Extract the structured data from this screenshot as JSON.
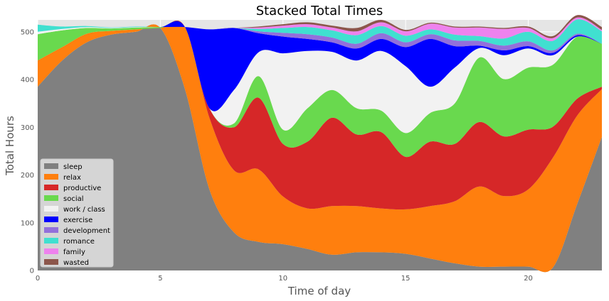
{
  "chart_data": {
    "type": "area",
    "stacked": true,
    "title": "Stacked Total Times",
    "xlabel": "Time of day",
    "ylabel": "Total Hours",
    "xlim": [
      0,
      23
    ],
    "ylim": [
      0,
      525
    ],
    "xticks": [
      0,
      5,
      10,
      15,
      20
    ],
    "yticks": [
      0,
      100,
      200,
      300,
      400,
      500
    ],
    "grid": true,
    "legend_position": "lower-left",
    "x": [
      0,
      1,
      2,
      3,
      4,
      5,
      6,
      7,
      8,
      9,
      10,
      11,
      12,
      13,
      14,
      15,
      16,
      17,
      18,
      19,
      20,
      21,
      22,
      23
    ],
    "series": [
      {
        "name": "sleep",
        "color": "#808080",
        "values": [
          385,
          440,
          478,
          494,
          500,
          508,
          380,
          170,
          80,
          60,
          55,
          45,
          33,
          38,
          38,
          35,
          25,
          15,
          8,
          8,
          8,
          6,
          140,
          280
        ]
      },
      {
        "name": "relax",
        "color": "#ff7f0e",
        "values": [
          55,
          28,
          18,
          8,
          5,
          0,
          130,
          150,
          130,
          152,
          100,
          85,
          102,
          97,
          92,
          93,
          110,
          130,
          168,
          148,
          162,
          230,
          185,
          100
        ]
      },
      {
        "name": "productive",
        "color": "#d62728",
        "values": [
          0,
          0,
          0,
          0,
          0,
          0,
          0,
          20,
          90,
          150,
          110,
          140,
          185,
          150,
          160,
          110,
          135,
          120,
          135,
          125,
          125,
          65,
          35,
          5
        ]
      },
      {
        "name": "social",
        "color": "#69d94e",
        "values": [
          55,
          35,
          12,
          5,
          4,
          2,
          0,
          0,
          8,
          45,
          30,
          70,
          58,
          55,
          45,
          50,
          60,
          85,
          135,
          120,
          130,
          130,
          130,
          90
        ]
      },
      {
        "name": "work / class",
        "color": "#f2f2f2",
        "values": [
          5,
          3,
          2,
          1,
          1,
          0,
          0,
          0,
          70,
          50,
          160,
          120,
          80,
          100,
          125,
          140,
          55,
          75,
          20,
          50,
          40,
          20,
          0,
          0
        ]
      },
      {
        "name": "exercise",
        "color": "#0000ff",
        "values": [
          0,
          0,
          0,
          0,
          0,
          0,
          0,
          165,
          130,
          40,
          35,
          25,
          20,
          25,
          25,
          40,
          100,
          45,
          5,
          10,
          5,
          5,
          3,
          0
        ]
      },
      {
        "name": "development",
        "color": "#9370db",
        "values": [
          0,
          0,
          0,
          0,
          0,
          0,
          0,
          0,
          0,
          4,
          8,
          10,
          10,
          10,
          12,
          10,
          10,
          12,
          10,
          10,
          10,
          5,
          3,
          0
        ]
      },
      {
        "name": "romance",
        "color": "#40e0d0",
        "values": [
          15,
          5,
          2,
          1,
          1,
          0,
          0,
          0,
          0,
          5,
          10,
          15,
          15,
          18,
          15,
          14,
          10,
          12,
          10,
          15,
          20,
          20,
          30,
          26
        ]
      },
      {
        "name": "family",
        "color": "#ee82ee",
        "values": [
          0,
          0,
          0,
          0,
          0,
          0,
          0,
          0,
          0,
          3,
          5,
          6,
          6,
          8,
          8,
          9,
          12,
          15,
          18,
          20,
          8,
          6,
          4,
          3
        ]
      },
      {
        "name": "wasted",
        "color": "#8c564b",
        "values": [
          0,
          0,
          0,
          0,
          0,
          0,
          0,
          0,
          0,
          2,
          3,
          4,
          4,
          7,
          5,
          3,
          2,
          2,
          2,
          2,
          3,
          4,
          5,
          6
        ]
      }
    ]
  }
}
